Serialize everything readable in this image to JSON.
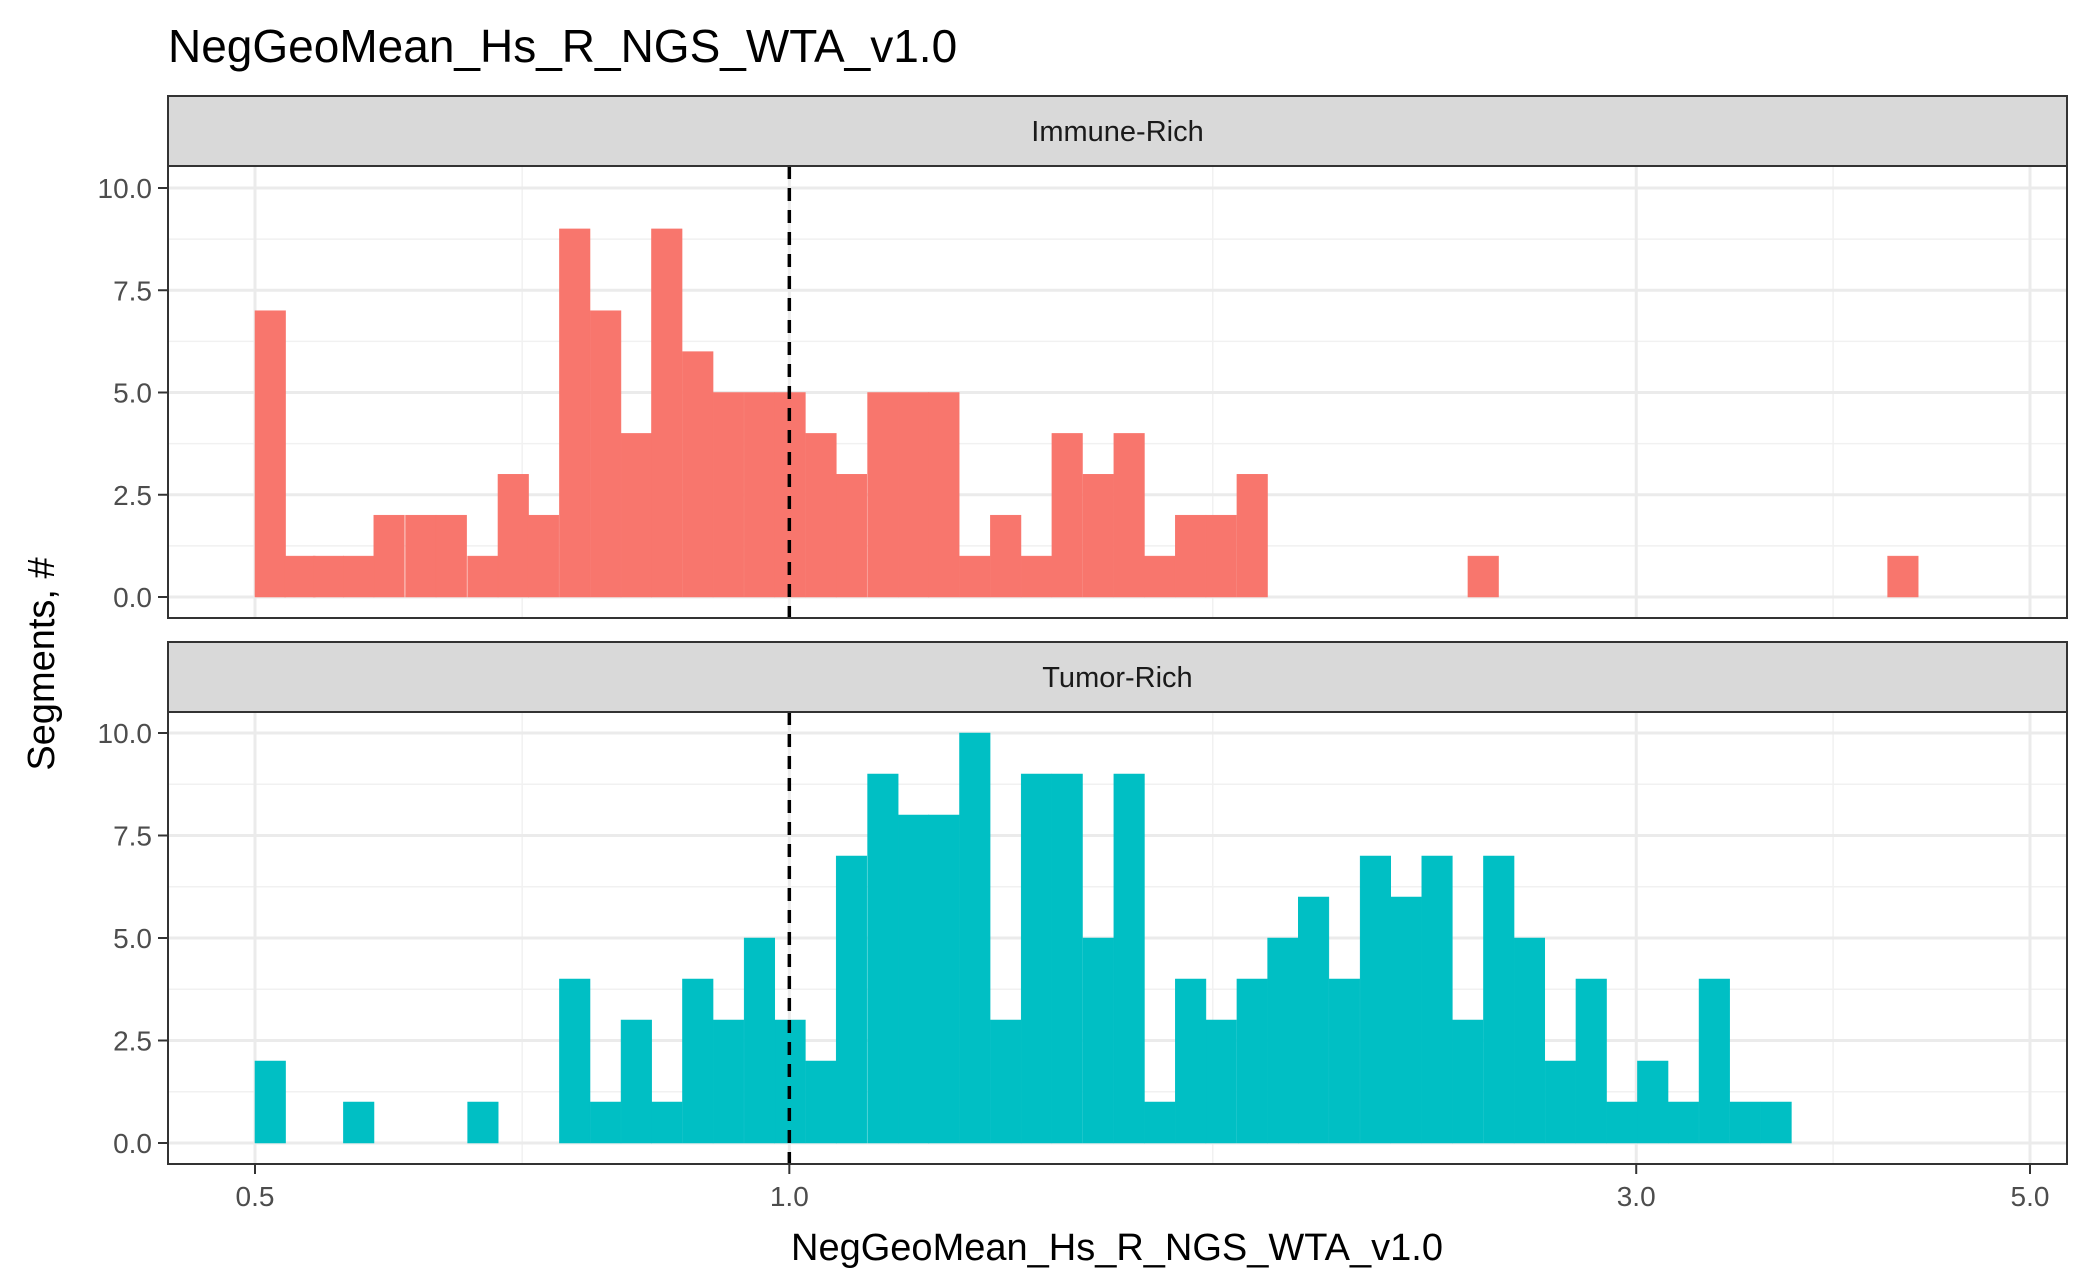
{
  "chart_data": {
    "type": "bar",
    "title": "NegGeoMean_Hs_R_NGS_WTA_v1.0",
    "xlabel": "NegGeoMean_Hs_R_NGS_WTA_v1.0",
    "ylabel": "Segments, #",
    "x_scale": "log10",
    "x_ticks": [
      0.5,
      1.0,
      3.0,
      5.0
    ],
    "x_tick_labels": [
      "0.5",
      "1.0",
      "3.0",
      "5.0"
    ],
    "y_ticks": [
      0,
      2.5,
      5,
      7.5,
      10
    ],
    "y_tick_labels": [
      "0.0",
      "2.5",
      "5.0",
      "7.5",
      "10.0"
    ],
    "ylim": [
      0,
      10
    ],
    "threshold_line": 1.0,
    "grid": true,
    "facets": [
      {
        "label": "Immune-Rich",
        "color": "#F8766D",
        "bins": [
          {
            "x": 0.51,
            "count": 7
          },
          {
            "x": 0.53,
            "count": 1
          },
          {
            "x": 0.55,
            "count": 1
          },
          {
            "x": 0.572,
            "count": 1
          },
          {
            "x": 0.595,
            "count": 2
          },
          {
            "x": 0.62,
            "count": 2
          },
          {
            "x": 0.645,
            "count": 2
          },
          {
            "x": 0.672,
            "count": 1
          },
          {
            "x": 0.699,
            "count": 3
          },
          {
            "x": 0.727,
            "count": 2
          },
          {
            "x": 0.757,
            "count": 9
          },
          {
            "x": 0.788,
            "count": 7
          },
          {
            "x": 0.82,
            "count": 4
          },
          {
            "x": 0.853,
            "count": 9
          },
          {
            "x": 0.888,
            "count": 6
          },
          {
            "x": 0.924,
            "count": 5
          },
          {
            "x": 0.962,
            "count": 5
          },
          {
            "x": 1.001,
            "count": 5
          },
          {
            "x": 1.042,
            "count": 4
          },
          {
            "x": 1.084,
            "count": 3
          },
          {
            "x": 1.129,
            "count": 5
          },
          {
            "x": 1.175,
            "count": 5
          },
          {
            "x": 1.222,
            "count": 5
          },
          {
            "x": 1.272,
            "count": 1
          },
          {
            "x": 1.324,
            "count": 2
          },
          {
            "x": 1.378,
            "count": 1
          },
          {
            "x": 1.434,
            "count": 4
          },
          {
            "x": 1.493,
            "count": 3
          },
          {
            "x": 1.554,
            "count": 4
          },
          {
            "x": 1.617,
            "count": 1
          },
          {
            "x": 1.683,
            "count": 2
          },
          {
            "x": 1.751,
            "count": 2
          },
          {
            "x": 1.823,
            "count": 3
          },
          {
            "x": 2.46,
            "count": 1
          },
          {
            "x": 4.24,
            "count": 1
          }
        ]
      },
      {
        "label": "Tumor-Rich",
        "color": "#00BFC4",
        "bins": [
          {
            "x": 0.51,
            "count": 2
          },
          {
            "x": 0.572,
            "count": 1
          },
          {
            "x": 0.672,
            "count": 1
          },
          {
            "x": 0.757,
            "count": 4
          },
          {
            "x": 0.788,
            "count": 1
          },
          {
            "x": 0.82,
            "count": 3
          },
          {
            "x": 0.853,
            "count": 1
          },
          {
            "x": 0.888,
            "count": 4
          },
          {
            "x": 0.924,
            "count": 3
          },
          {
            "x": 0.962,
            "count": 5
          },
          {
            "x": 1.001,
            "count": 3
          },
          {
            "x": 1.042,
            "count": 2
          },
          {
            "x": 1.084,
            "count": 7
          },
          {
            "x": 1.129,
            "count": 9
          },
          {
            "x": 1.175,
            "count": 8
          },
          {
            "x": 1.222,
            "count": 8
          },
          {
            "x": 1.272,
            "count": 10
          },
          {
            "x": 1.324,
            "count": 3
          },
          {
            "x": 1.378,
            "count": 9
          },
          {
            "x": 1.434,
            "count": 9
          },
          {
            "x": 1.493,
            "count": 5
          },
          {
            "x": 1.554,
            "count": 9
          },
          {
            "x": 1.617,
            "count": 1
          },
          {
            "x": 1.683,
            "count": 4
          },
          {
            "x": 1.751,
            "count": 3
          },
          {
            "x": 1.823,
            "count": 4
          },
          {
            "x": 1.897,
            "count": 5
          },
          {
            "x": 1.974,
            "count": 6
          },
          {
            "x": 2.055,
            "count": 4
          },
          {
            "x": 2.139,
            "count": 7
          },
          {
            "x": 2.226,
            "count": 6
          },
          {
            "x": 2.317,
            "count": 7
          },
          {
            "x": 2.411,
            "count": 3
          },
          {
            "x": 2.51,
            "count": 7
          },
          {
            "x": 2.612,
            "count": 5
          },
          {
            "x": 2.719,
            "count": 2
          },
          {
            "x": 2.83,
            "count": 4
          },
          {
            "x": 2.945,
            "count": 1
          },
          {
            "x": 3.065,
            "count": 2
          },
          {
            "x": 3.19,
            "count": 1
          },
          {
            "x": 3.32,
            "count": 4
          },
          {
            "x": 3.456,
            "count": 1
          },
          {
            "x": 3.597,
            "count": 1
          }
        ]
      }
    ]
  }
}
